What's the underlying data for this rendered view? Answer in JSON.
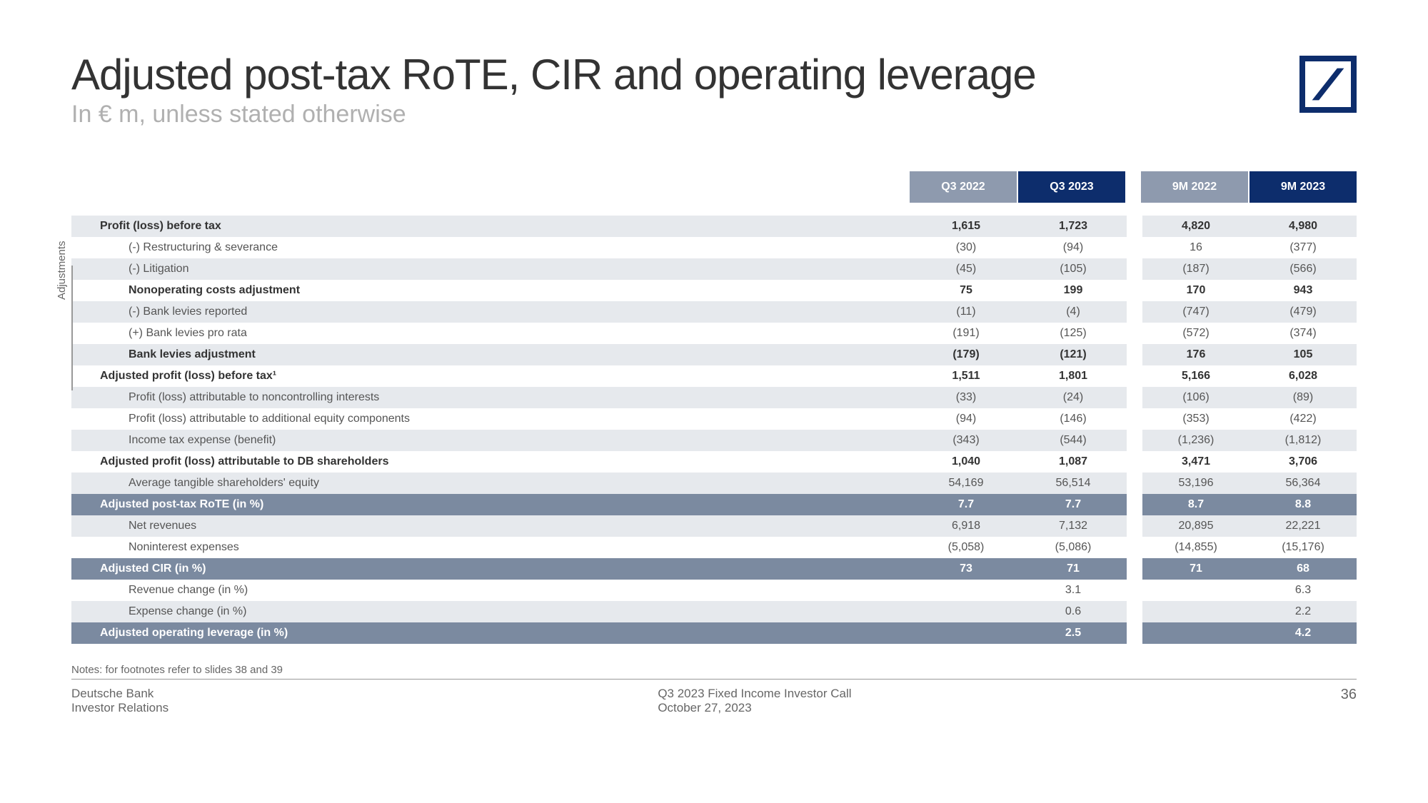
{
  "title": "Adjusted post-tax RoTE, CIR and operating leverage",
  "subtitle": "In € m, unless stated otherwise",
  "side_label": "Adjustments",
  "columns": {
    "groupA": [
      "Q3 2022",
      "Q3 2023"
    ],
    "groupB": [
      "9M 2022",
      "9M 2023"
    ]
  },
  "colors": {
    "col_gray": "#8e9aae",
    "col_navy": "#0d2d6c",
    "row_shade": "#e6e9ed",
    "row_highlight": "#7b8aa0"
  },
  "rows": [
    {
      "label": "Profit (loss) before tax",
      "style": "bold shaded",
      "indent": 0,
      "vals": [
        "1,615",
        "1,723",
        "4,820",
        "4,980"
      ]
    },
    {
      "label": "(-) Restructuring & severance",
      "style": "",
      "indent": 2,
      "vals": [
        "(30)",
        "(94)",
        "16",
        "(377)"
      ]
    },
    {
      "label": "(-) Litigation",
      "style": "shaded",
      "indent": 2,
      "vals": [
        "(45)",
        "(105)",
        "(187)",
        "(566)"
      ]
    },
    {
      "label": "Nonoperating costs adjustment",
      "style": "bold",
      "indent": 2,
      "vals": [
        "75",
        "199",
        "170",
        "943"
      ]
    },
    {
      "label": "(-) Bank levies reported",
      "style": "shaded",
      "indent": 2,
      "vals": [
        "(11)",
        "(4)",
        "(747)",
        "(479)"
      ]
    },
    {
      "label": "(+) Bank levies pro rata",
      "style": "",
      "indent": 2,
      "vals": [
        "(191)",
        "(125)",
        "(572)",
        "(374)"
      ]
    },
    {
      "label": "Bank levies adjustment",
      "style": "bold shaded",
      "indent": 2,
      "vals": [
        "(179)",
        "(121)",
        "176",
        "105"
      ]
    },
    {
      "label": "Adjusted profit (loss) before tax¹",
      "style": "bold",
      "indent": 0,
      "vals": [
        "1,511",
        "1,801",
        "5,166",
        "6,028"
      ]
    },
    {
      "label": "Profit (loss) attributable to noncontrolling interests",
      "style": "shaded",
      "indent": 1,
      "vals": [
        "(33)",
        "(24)",
        "(106)",
        "(89)"
      ]
    },
    {
      "label": "Profit (loss) attributable to additional equity components",
      "style": "",
      "indent": 1,
      "vals": [
        "(94)",
        "(146)",
        "(353)",
        "(422)"
      ]
    },
    {
      "label": "Income tax expense (benefit)",
      "style": "shaded",
      "indent": 1,
      "vals": [
        "(343)",
        "(544)",
        "(1,236)",
        "(1,812)"
      ]
    },
    {
      "label": "Adjusted profit (loss) attributable to DB shareholders",
      "style": "bold",
      "indent": 0,
      "vals": [
        "1,040",
        "1,087",
        "3,471",
        "3,706"
      ]
    },
    {
      "label": "Average tangible shareholders' equity",
      "style": "shaded",
      "indent": 1,
      "vals": [
        "54,169",
        "56,514",
        "53,196",
        "56,364"
      ]
    },
    {
      "label": "Adjusted post-tax RoTE (in %)",
      "style": "highlight",
      "indent": 0,
      "vals": [
        "7.7",
        "7.7",
        "8.7",
        "8.8"
      ]
    },
    {
      "label": "Net revenues",
      "style": "shaded",
      "indent": 1,
      "vals": [
        "6,918",
        "7,132",
        "20,895",
        "22,221"
      ]
    },
    {
      "label": "Noninterest expenses",
      "style": "",
      "indent": 1,
      "vals": [
        "(5,058)",
        "(5,086)",
        "(14,855)",
        "(15,176)"
      ]
    },
    {
      "label": "Adjusted CIR (in %)",
      "style": "highlight",
      "indent": 0,
      "vals": [
        "73",
        "71",
        "71",
        "68"
      ]
    },
    {
      "label": "Revenue change (in %)",
      "style": "",
      "indent": 1,
      "vals": [
        "",
        "3.1",
        "",
        "6.3"
      ]
    },
    {
      "label": "Expense change (in %)",
      "style": "shaded",
      "indent": 1,
      "vals": [
        "",
        "0.6",
        "",
        "2.2"
      ]
    },
    {
      "label": "Adjusted operating leverage (in %)",
      "style": "highlight",
      "indent": 0,
      "vals": [
        "",
        "2.5",
        "",
        "4.2"
      ]
    }
  ],
  "notes": "Notes: for footnotes refer to slides 38 and 39",
  "footer": {
    "left1": "Deutsche Bank",
    "left2": "Investor Relations",
    "center1": "Q3 2023 Fixed Income Investor Call",
    "center2": "October 27, 2023",
    "page": "36"
  }
}
